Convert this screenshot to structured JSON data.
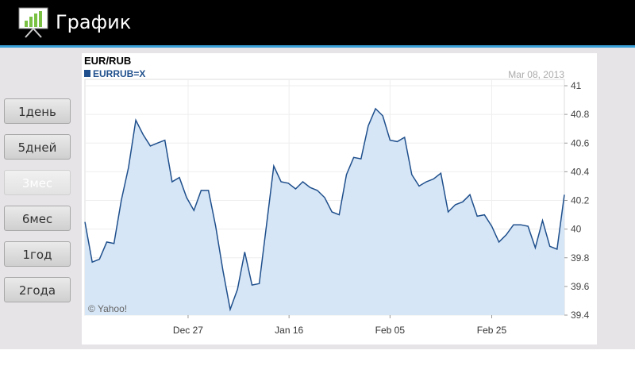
{
  "app_bar": {
    "title": "График"
  },
  "buttons": [
    "1день",
    "5дней",
    "3мес",
    "6мес",
    "1год",
    "2года"
  ],
  "chart_data": {
    "type": "line",
    "title": "EUR/RUB",
    "date": "Mar 08, 2013",
    "credit": "© Yahoo!",
    "xlim": [
      0,
      66
    ],
    "xticks": [
      {
        "value": 14.2,
        "label": "Dec 27"
      },
      {
        "value": 28.1,
        "label": "Jan 16"
      },
      {
        "value": 42,
        "label": "Feb 05"
      },
      {
        "value": 56,
        "label": "Feb 25"
      }
    ],
    "ylim": [
      39.4,
      41.0
    ],
    "yticks": [
      39.4,
      39.6,
      39.8,
      40.0,
      40.2,
      40.4,
      40.6,
      40.8,
      41.0
    ],
    "grid": true,
    "series": [
      {
        "name": "EURRUB=X",
        "color": "#1f4f8c",
        "values": [
          40.05,
          39.77,
          39.79,
          39.91,
          39.9,
          40.2,
          40.43,
          40.76,
          40.66,
          40.58,
          40.6,
          40.62,
          40.33,
          40.36,
          40.22,
          40.13,
          40.27,
          40.27,
          40.02,
          39.71,
          39.44,
          39.58,
          39.84,
          39.61,
          39.62,
          40.03,
          40.44,
          40.33,
          40.32,
          40.28,
          40.33,
          40.29,
          40.27,
          40.22,
          40.12,
          40.1,
          40.38,
          40.5,
          40.49,
          40.72,
          40.84,
          40.79,
          40.62,
          40.61,
          40.64,
          40.38,
          40.3,
          40.33,
          40.35,
          40.39,
          40.12,
          40.17,
          40.19,
          40.24,
          40.09,
          40.1,
          40.02,
          39.91,
          39.96,
          40.03,
          40.03,
          40.02,
          39.87,
          40.06,
          39.88,
          39.86,
          40.24
        ]
      }
    ]
  }
}
